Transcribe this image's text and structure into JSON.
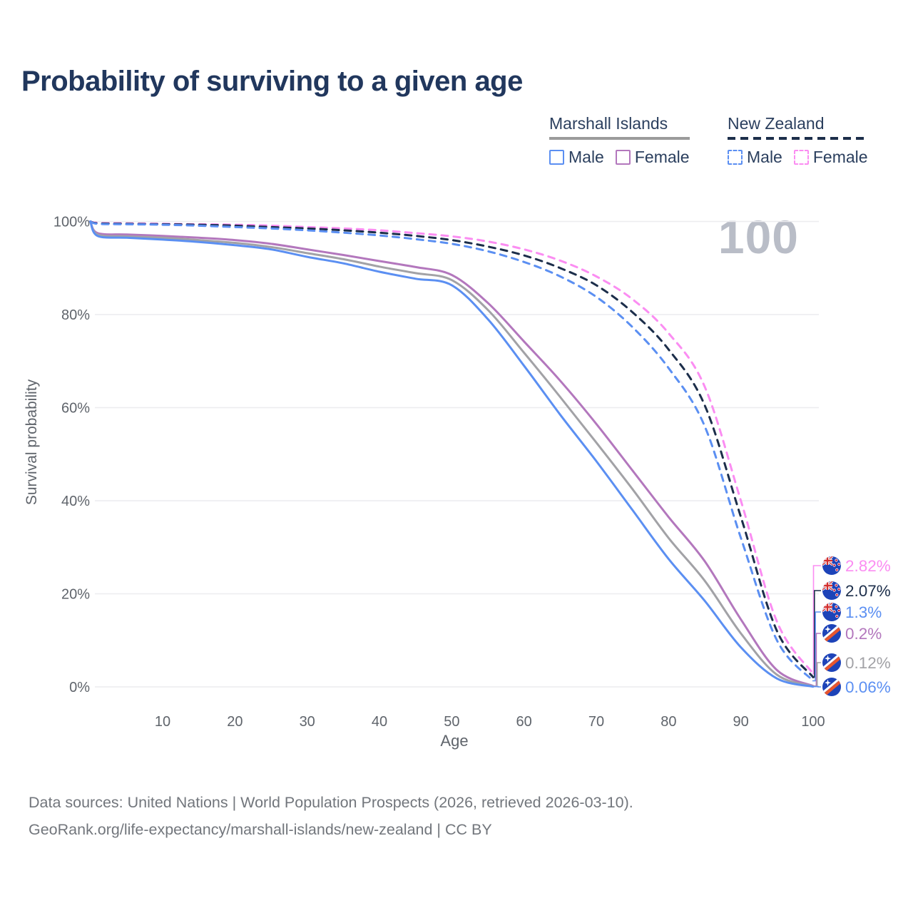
{
  "title": "Probability of surviving to a given age",
  "age_cursor": "100",
  "legend": {
    "groups": [
      {
        "label": "Marshall Islands",
        "style": "solid",
        "items": [
          {
            "label": "Male",
            "color": "#5b8ff2"
          },
          {
            "label": "Female",
            "color": "#b377bd"
          }
        ]
      },
      {
        "label": "New Zealand",
        "style": "dashed",
        "items": [
          {
            "label": "Male",
            "color": "#5b8ff2"
          },
          {
            "label": "Female",
            "color": "#fb8df2"
          }
        ]
      }
    ]
  },
  "chart_data": {
    "type": "line",
    "title": "Probability of surviving to a given age",
    "xlabel": "Age",
    "ylabel": "Survival probability",
    "xlim": [
      0,
      100
    ],
    "ylim": [
      0,
      100
    ],
    "grid": "horizontal",
    "legend_position": "top-right",
    "x_ticks": [
      10,
      20,
      30,
      40,
      50,
      60,
      70,
      80,
      90,
      100
    ],
    "y_ticks": [
      {
        "label": "0%",
        "value": 0
      },
      {
        "label": "20%",
        "value": 20
      },
      {
        "label": "40%",
        "value": 40
      },
      {
        "label": "60%",
        "value": 60
      },
      {
        "label": "80%",
        "value": 80
      },
      {
        "label": "100%",
        "value": 100
      }
    ],
    "x": [
      0,
      1,
      5,
      10,
      15,
      20,
      25,
      30,
      35,
      40,
      45,
      50,
      55,
      60,
      65,
      70,
      75,
      80,
      85,
      90,
      95,
      100
    ],
    "series": [
      {
        "name": "New Zealand Female",
        "country": "New Zealand",
        "sex": "Female",
        "style": "dashed",
        "color": "#fb8df2",
        "flag": "nz",
        "end_label": "2.82%",
        "values": [
          100,
          99.7,
          99.6,
          99.5,
          99.4,
          99.3,
          99.1,
          98.8,
          98.5,
          98.1,
          97.5,
          96.8,
          95.7,
          94.0,
          91.6,
          88.2,
          83.3,
          76.0,
          64.5,
          40.0,
          14.0,
          2.82
        ]
      },
      {
        "name": "New Zealand Both sexes",
        "country": "New Zealand",
        "sex": "Both",
        "style": "dashed",
        "color": "#1c2e4a",
        "flag": "nz",
        "end_label": "2.07%",
        "values": [
          100,
          99.6,
          99.5,
          99.4,
          99.3,
          99.1,
          98.8,
          98.5,
          98.1,
          97.6,
          96.9,
          96.0,
          94.6,
          92.7,
          90.0,
          86.3,
          80.5,
          72.5,
          60.5,
          36.5,
          12.0,
          2.07
        ]
      },
      {
        "name": "New Zealand Male",
        "country": "New Zealand",
        "sex": "Male",
        "style": "dashed",
        "color": "#5b8ff2",
        "flag": "nz",
        "end_label": "1.3%",
        "values": [
          100,
          99.5,
          99.4,
          99.3,
          99.1,
          98.8,
          98.5,
          98.1,
          97.6,
          97.0,
          96.2,
          95.2,
          93.6,
          91.3,
          88.2,
          83.8,
          77.3,
          68.5,
          56.0,
          32.0,
          10.0,
          1.3
        ]
      },
      {
        "name": "Marshall Islands Female",
        "country": "Marshall Islands",
        "sex": "Female",
        "style": "solid",
        "color": "#b377bd",
        "flag": "mi",
        "end_label": "0.2%",
        "values": [
          100,
          97.5,
          97.2,
          96.9,
          96.5,
          96.0,
          95.2,
          94.0,
          92.8,
          91.5,
          90.2,
          88.5,
          82.5,
          74.2,
          65.8,
          56.5,
          46.5,
          36.5,
          27.0,
          14.5,
          3.6,
          0.2
        ]
      },
      {
        "name": "Marshall Islands Both sexes",
        "country": "Marshall Islands",
        "sex": "Both",
        "style": "solid",
        "color": "#a2a2a6",
        "flag": "mi",
        "end_label": "0.12%",
        "values": [
          100,
          97.2,
          96.8,
          96.5,
          96.0,
          95.4,
          94.5,
          93.2,
          91.9,
          90.3,
          88.9,
          87.4,
          81.0,
          71.8,
          62.3,
          52.5,
          42.5,
          32.0,
          22.8,
          11.5,
          2.6,
          0.12
        ]
      },
      {
        "name": "Marshall Islands Male",
        "country": "Marshall Islands",
        "sex": "Male",
        "style": "solid",
        "color": "#5b8ff2",
        "flag": "mi",
        "end_label": "0.06%",
        "values": [
          100,
          96.9,
          96.5,
          96.1,
          95.6,
          94.9,
          94.0,
          92.4,
          91.0,
          89.2,
          87.7,
          86.3,
          79.0,
          69.0,
          58.5,
          48.5,
          38.0,
          27.5,
          18.5,
          8.5,
          1.8,
          0.06
        ]
      }
    ],
    "colors": {
      "grid": "#ececef",
      "axis_text": "#5f646b",
      "title_text": "#21375d",
      "watermark": "#b9bdc7"
    }
  },
  "footer": {
    "line1": "Data sources: United Nations | World Population Prospects (2026, retrieved 2026-03-10).",
    "line2": "GeoRank.org/life-expectancy/marshall-islands/new-zealand | CC BY"
  }
}
